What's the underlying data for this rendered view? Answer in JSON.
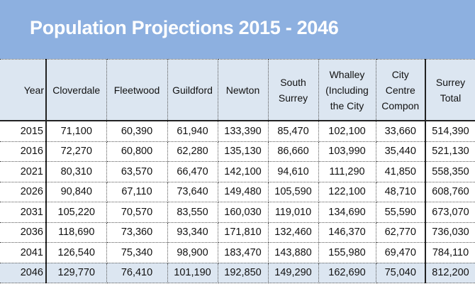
{
  "title": "Population Projections 2015 - 2046",
  "headers": [
    "Year",
    "Cloverdale",
    "Fleetwood",
    "Guildford",
    "Newton",
    "South Surrey",
    "Whalley (Including the City",
    "City Centre Compon",
    "Surrey Total"
  ],
  "rows": [
    [
      "2015",
      "71,100",
      "60,390",
      "61,940",
      "133,390",
      "85,470",
      "102,100",
      "33,660",
      "514,390"
    ],
    [
      "2016",
      "72,270",
      "60,800",
      "62,280",
      "135,130",
      "86,660",
      "103,990",
      "35,440",
      "521,130"
    ],
    [
      "2021",
      "80,310",
      "63,570",
      "66,470",
      "142,100",
      "94,610",
      "111,290",
      "41,850",
      "558,350"
    ],
    [
      "2026",
      "90,840",
      "67,110",
      "73,640",
      "149,480",
      "105,590",
      "122,100",
      "48,710",
      "608,760"
    ],
    [
      "2031",
      "105,220",
      "70,570",
      "83,550",
      "160,030",
      "119,010",
      "134,690",
      "55,590",
      "673,070"
    ],
    [
      "2036",
      "118,690",
      "73,360",
      "93,340",
      "171,810",
      "132,460",
      "146,370",
      "62,770",
      "736,030"
    ],
    [
      "2041",
      "126,540",
      "75,340",
      "98,900",
      "183,470",
      "143,880",
      "155,980",
      "69,470",
      "784,110"
    ],
    [
      "2046",
      "129,770",
      "76,410",
      "101,190",
      "192,850",
      "149,290",
      "162,690",
      "75,040",
      "812,200"
    ]
  ],
  "colors": {
    "banner": "#8db0e0",
    "header_fill": "#dce6f1"
  }
}
